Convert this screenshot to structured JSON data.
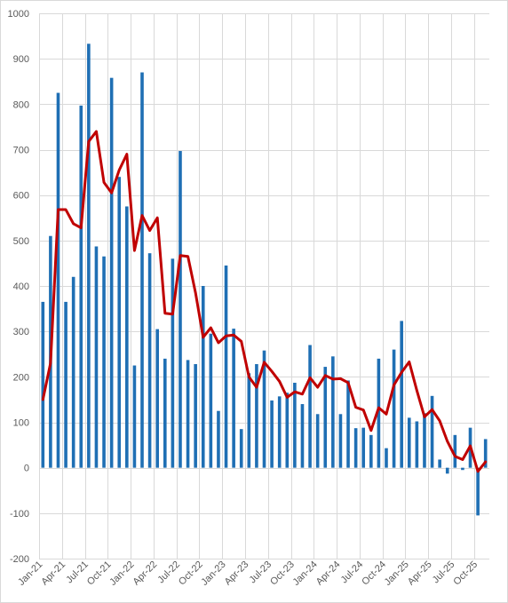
{
  "chart_data": {
    "type": "bar",
    "ylim": [
      -200,
      1000
    ],
    "yticks": [
      1000,
      900,
      800,
      700,
      600,
      500,
      400,
      300,
      200,
      100,
      0,
      -100,
      -200
    ],
    "grid": true,
    "months": 59,
    "xticks": [
      {
        "index": 0,
        "label": "Jan-21"
      },
      {
        "index": 3,
        "label": "Apr-21"
      },
      {
        "index": 6,
        "label": "Jul-21"
      },
      {
        "index": 9,
        "label": "Oct-21"
      },
      {
        "index": 12,
        "label": "Jan-22"
      },
      {
        "index": 15,
        "label": "Apr-22"
      },
      {
        "index": 18,
        "label": "Jul-22"
      },
      {
        "index": 21,
        "label": "Oct-22"
      },
      {
        "index": 24,
        "label": "Jan-23"
      },
      {
        "index": 27,
        "label": "Apr-23"
      },
      {
        "index": 30,
        "label": "Jul-23"
      },
      {
        "index": 33,
        "label": "Oct-23"
      },
      {
        "index": 36,
        "label": "Jan-24"
      },
      {
        "index": 39,
        "label": "Apr-24"
      },
      {
        "index": 42,
        "label": "Jul-24"
      },
      {
        "index": 45,
        "label": "Oct-24"
      },
      {
        "index": 48,
        "label": "Jan-25"
      },
      {
        "index": 51,
        "label": "Apr-25"
      },
      {
        "index": 54,
        "label": "Jul-25"
      },
      {
        "index": 57,
        "label": "Oct-25"
      }
    ],
    "series": [
      {
        "type": "bar",
        "color": "#1f6fb4",
        "values": [
          365,
          510,
          825,
          365,
          420,
          797,
          933,
          487,
          465,
          858,
          640,
          575,
          225,
          870,
          472,
          305,
          240,
          460,
          697,
          237,
          228,
          400,
          295,
          125,
          445,
          306,
          85,
          208,
          228,
          258,
          148,
          157,
          165,
          187,
          140,
          270,
          118,
          222,
          245,
          118,
          192,
          87,
          88,
          72,
          240,
          43,
          260,
          323,
          110,
          102,
          120,
          158,
          18,
          -13,
          72,
          -5,
          88,
          -105,
          63
        ]
      },
      {
        "type": "line",
        "color": "#c00000",
        "values": [
          150,
          230,
          568,
          568,
          537,
          528,
          718,
          740,
          628,
          605,
          655,
          690,
          478,
          555,
          522,
          550,
          340,
          338,
          467,
          465,
          385,
          287,
          308,
          275,
          290,
          292,
          278,
          200,
          177,
          232,
          212,
          190,
          155,
          167,
          162,
          198,
          177,
          203,
          195,
          196,
          187,
          133,
          127,
          82,
          132,
          118,
          182,
          210,
          233,
          170,
          112,
          128,
          103,
          58,
          25,
          18,
          48,
          -8,
          13
        ]
      }
    ]
  }
}
